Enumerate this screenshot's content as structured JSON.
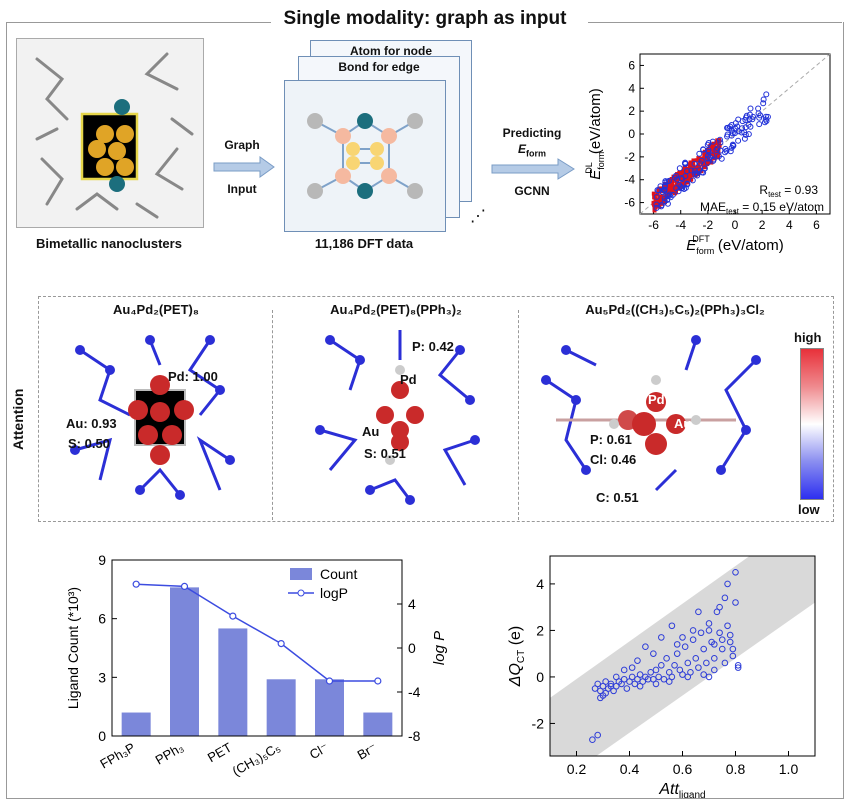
{
  "title": "Single modality: graph as input",
  "top": {
    "cluster_caption": "Bimetallic nanoclusters",
    "arrow1_top": "Graph",
    "arrow1_bottom": "Input",
    "graph_caption": "11,186 DFT data",
    "card_back_label": "Atom for node",
    "card_mid_label": "Bond for edge",
    "arrow2_top": "Predicting",
    "arrow2_mid": "E",
    "arrow2_mid_sub": "form",
    "arrow2_bottom": "GCNN",
    "scatter": {
      "ylabel_main": "E",
      "ylabel_sub": "form",
      "ylabel_sup": "DL",
      "ylabel_unit": " (eV/atom)",
      "xlabel_main": "E",
      "xlabel_sub": "form",
      "xlabel_sup": "DFT",
      "xlabel_unit": " (eV/atom)",
      "r2": "R",
      "r2_sub": "test",
      "r2_val": " = 0.93",
      "mae": "MAE",
      "mae_sub": "test",
      "mae_val": " = 0.15 eV/atom",
      "ticks": [
        "-6",
        "-4",
        "-2",
        "0",
        "2",
        "4",
        "6"
      ]
    }
  },
  "middle": {
    "attention_label": "Attention",
    "mol1": {
      "title_html": "Au₄Pd₂(PET)₈",
      "labels": [
        "Pd: 1.00",
        "Au: 0.93",
        "S: 0.50"
      ]
    },
    "mol2": {
      "title_html": "Au₄Pd₂(PET)₈(PPh₃)₂",
      "labels": [
        "P: 0.42",
        "Pd",
        "Au",
        "S: 0.51"
      ]
    },
    "mol3": {
      "title_html": "Au₅Pd₂((CH₃)₅C₅)₂(PPh₃)₃Cl₂",
      "labels": [
        "Pd",
        "Au",
        "P: 0.61",
        "Cl: 0.46",
        "C: 0.51"
      ]
    },
    "colorbar_high": "high",
    "colorbar_low": "low"
  },
  "chart_data": [
    {
      "type": "bar",
      "categories": [
        "FPh₃P",
        "PPh₃",
        "PET",
        "(CH₃)₅C₅",
        "Cl⁻",
        "Br⁻"
      ],
      "series": [
        {
          "name": "Count",
          "values": [
            1.2,
            7.6,
            5.5,
            2.9,
            2.9,
            1.2
          ]
        },
        {
          "name": "logP",
          "values": [
            5.8,
            5.6,
            2.9,
            0.4,
            -3.0,
            -3.0
          ]
        }
      ],
      "ylabel": "Ligand Count (*10³)",
      "y2label": "log P",
      "ylim": [
        0,
        9
      ],
      "y2lim": [
        -8,
        8
      ],
      "yticks": [
        "0",
        "3",
        "6",
        "9"
      ],
      "y2ticks": [
        "-8",
        "-4",
        "0",
        "4"
      ],
      "legend": [
        "Count",
        "logP"
      ],
      "legend_position": "top-right"
    },
    {
      "type": "scatter",
      "xlabel": "Att",
      "xlabel_sub": "ligand",
      "ylabel": "ΔQ",
      "ylabel_sub": "CT",
      "ylabel_unit": " (e)",
      "xlim": [
        0.1,
        1.1
      ],
      "ylim": [
        -3.4,
        5.2
      ],
      "xticks": [
        "0.2",
        "0.4",
        "0.6",
        "0.8",
        "1.0"
      ],
      "yticks": [
        "-2",
        "0",
        "2",
        "4"
      ],
      "points": [
        [
          0.26,
          -2.7
        ],
        [
          0.28,
          -2.5
        ],
        [
          0.27,
          -0.5
        ],
        [
          0.28,
          -0.3
        ],
        [
          0.29,
          -0.9
        ],
        [
          0.29,
          -0.6
        ],
        [
          0.3,
          -0.4
        ],
        [
          0.31,
          -0.7
        ],
        [
          0.31,
          -0.2
        ],
        [
          0.32,
          -0.5
        ],
        [
          0.33,
          -0.3
        ],
        [
          0.34,
          -0.6
        ],
        [
          0.35,
          -0.4
        ],
        [
          0.36,
          -0.2
        ],
        [
          0.37,
          -0.3
        ],
        [
          0.38,
          -0.1
        ],
        [
          0.39,
          -0.5
        ],
        [
          0.4,
          -0.2
        ],
        [
          0.41,
          0.0
        ],
        [
          0.42,
          -0.3
        ],
        [
          0.43,
          -0.1
        ],
        [
          0.44,
          0.1
        ],
        [
          0.45,
          -0.2
        ],
        [
          0.46,
          0.0
        ],
        [
          0.47,
          -0.1
        ],
        [
          0.48,
          0.2
        ],
        [
          0.49,
          -0.1
        ],
        [
          0.5,
          0.3
        ],
        [
          0.51,
          0.0
        ],
        [
          0.52,
          0.5
        ],
        [
          0.53,
          -0.1
        ],
        [
          0.54,
          0.8
        ],
        [
          0.55,
          0.2
        ],
        [
          0.56,
          0.0
        ],
        [
          0.57,
          0.5
        ],
        [
          0.58,
          1.0
        ],
        [
          0.59,
          0.3
        ],
        [
          0.6,
          0.1
        ],
        [
          0.61,
          1.3
        ],
        [
          0.62,
          0.6
        ],
        [
          0.63,
          0.2
        ],
        [
          0.64,
          1.6
        ],
        [
          0.65,
          0.8
        ],
        [
          0.66,
          0.4
        ],
        [
          0.67,
          1.9
        ],
        [
          0.68,
          1.2
        ],
        [
          0.69,
          0.6
        ],
        [
          0.7,
          2.3
        ],
        [
          0.71,
          1.5
        ],
        [
          0.72,
          0.8
        ],
        [
          0.73,
          2.8
        ],
        [
          0.74,
          1.9
        ],
        [
          0.75,
          1.2
        ],
        [
          0.76,
          3.4
        ],
        [
          0.77,
          2.2
        ],
        [
          0.78,
          1.5
        ],
        [
          0.79,
          0.9
        ],
        [
          0.8,
          4.5
        ],
        [
          0.8,
          3.2
        ],
        [
          0.81,
          0.5
        ],
        [
          0.81,
          0.4
        ],
        [
          0.78,
          1.8
        ],
        [
          0.75,
          1.6
        ],
        [
          0.72,
          1.4
        ],
        [
          0.7,
          2.0
        ],
        [
          0.66,
          2.8
        ],
        [
          0.6,
          1.7
        ],
        [
          0.56,
          2.2
        ],
        [
          0.52,
          1.7
        ],
        [
          0.46,
          1.3
        ],
        [
          0.43,
          0.7
        ],
        [
          0.38,
          0.3
        ],
        [
          0.35,
          0.0
        ],
        [
          0.33,
          -0.4
        ],
        [
          0.3,
          -0.8
        ],
        [
          0.68,
          0.1
        ],
        [
          0.72,
          0.3
        ],
        [
          0.76,
          0.6
        ],
        [
          0.79,
          1.2
        ],
        [
          0.7,
          0.0
        ],
        [
          0.62,
          0.0
        ],
        [
          0.55,
          -0.2
        ],
        [
          0.5,
          -0.3
        ],
        [
          0.44,
          -0.4
        ],
        [
          0.77,
          4.0
        ],
        [
          0.74,
          3.0
        ],
        [
          0.64,
          2.0
        ],
        [
          0.58,
          1.4
        ],
        [
          0.49,
          1.0
        ],
        [
          0.41,
          0.4
        ]
      ]
    }
  ]
}
